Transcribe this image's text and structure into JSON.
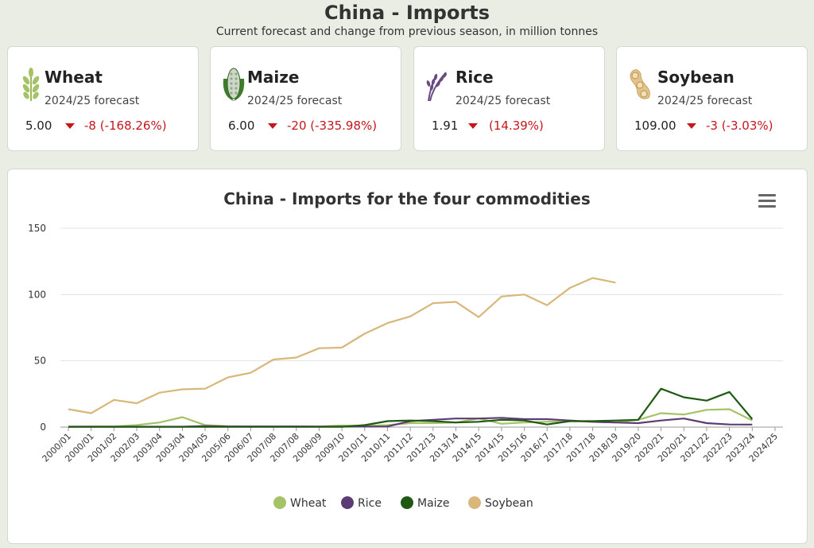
{
  "header": {
    "title": "China - Imports",
    "subtitle": "Current forecast and change from previous season, in million tonnes"
  },
  "cards": [
    {
      "name": "Wheat",
      "period": "2024/25 forecast",
      "value": "5.00",
      "change": "-8 (-168.26%)",
      "icon": "wheat-icon"
    },
    {
      "name": "Maize",
      "period": "2024/25 forecast",
      "value": "6.00",
      "change": "-20 (-335.98%)",
      "icon": "maize-icon"
    },
    {
      "name": "Rice",
      "period": "2024/25 forecast",
      "value": "1.91",
      "change": "(14.39%)",
      "icon": "rice-icon"
    },
    {
      "name": "Soybean",
      "period": "2024/25 forecast",
      "value": "109.00",
      "change": "-3 (-3.03%)",
      "icon": "soybean-icon"
    }
  ],
  "colors": {
    "wheat": "#a4c266",
    "rice": "#5c3c75",
    "maize": "#1f5a12",
    "soybean": "#d9b77a",
    "down": "#c6161b"
  },
  "chart_data": {
    "type": "line",
    "title": "China - Imports for the four commodities",
    "categories": [
      "2000/01",
      "2000/01",
      "2001/02",
      "2002/03",
      "2003/04",
      "2003/04",
      "2004/05",
      "2005/06",
      "2006/07",
      "2007/08",
      "2007/08",
      "2008/09",
      "2009/10",
      "2010/11",
      "2010/11",
      "2011/12",
      "2012/13",
      "2013/14",
      "2014/15",
      "2014/15",
      "2015/16",
      "2016/17",
      "2017/18",
      "2017/18",
      "2018/19",
      "2019/20",
      "2020/21",
      "2020/21",
      "2021/22",
      "2022/23",
      "2023/24",
      "2024/25"
    ],
    "ylim": [
      0,
      150
    ],
    "yticks": [
      0,
      50,
      100,
      150
    ],
    "grid": true,
    "legend_position": "bottom",
    "series": [
      {
        "name": "Wheat",
        "values": [
          0.3,
          0.5,
          0.5,
          1.5,
          3.5,
          7.5,
          1.5,
          0.7,
          0.5,
          0.5,
          0.5,
          0.5,
          1.2,
          1.0,
          1.5,
          3.0,
          3.0,
          3.5,
          6.5,
          2.5,
          3.5,
          4.0,
          4.5,
          4.0,
          3.5,
          5.5,
          10.5,
          9.5,
          13.0,
          13.5,
          5.0,
          null
        ]
      },
      {
        "name": "Rice",
        "values": [
          0.3,
          0.3,
          0.3,
          0.3,
          0.3,
          0.3,
          0.8,
          0.5,
          0.5,
          0.5,
          0.5,
          0.4,
          0.4,
          0.4,
          0.5,
          4.5,
          5.5,
          6.5,
          6.5,
          7.0,
          6.0,
          6.0,
          5.0,
          4.0,
          3.5,
          3.0,
          5.0,
          6.5,
          3.0,
          2.0,
          1.9,
          null
        ]
      },
      {
        "name": "Maize",
        "values": [
          0.2,
          0.2,
          0.2,
          0.2,
          0.2,
          0.2,
          0.2,
          0.2,
          0.2,
          0.2,
          0.2,
          0.2,
          0.2,
          1.5,
          4.5,
          5.0,
          4.5,
          3.5,
          4.0,
          5.5,
          5.0,
          2.0,
          4.5,
          4.5,
          5.0,
          5.5,
          29.0,
          22.5,
          20.0,
          26.5,
          6.0,
          null
        ]
      },
      {
        "name": "Soybean",
        "values": [
          13.5,
          10.5,
          20.5,
          18.0,
          26.0,
          28.5,
          29.0,
          37.5,
          41.0,
          51.0,
          52.5,
          59.5,
          60.0,
          70.5,
          78.5,
          83.5,
          93.5,
          94.5,
          83.0,
          98.5,
          100.0,
          92.0,
          105.0,
          112.5,
          109.0,
          null,
          null,
          null,
          null,
          null,
          null,
          null
        ]
      }
    ]
  }
}
